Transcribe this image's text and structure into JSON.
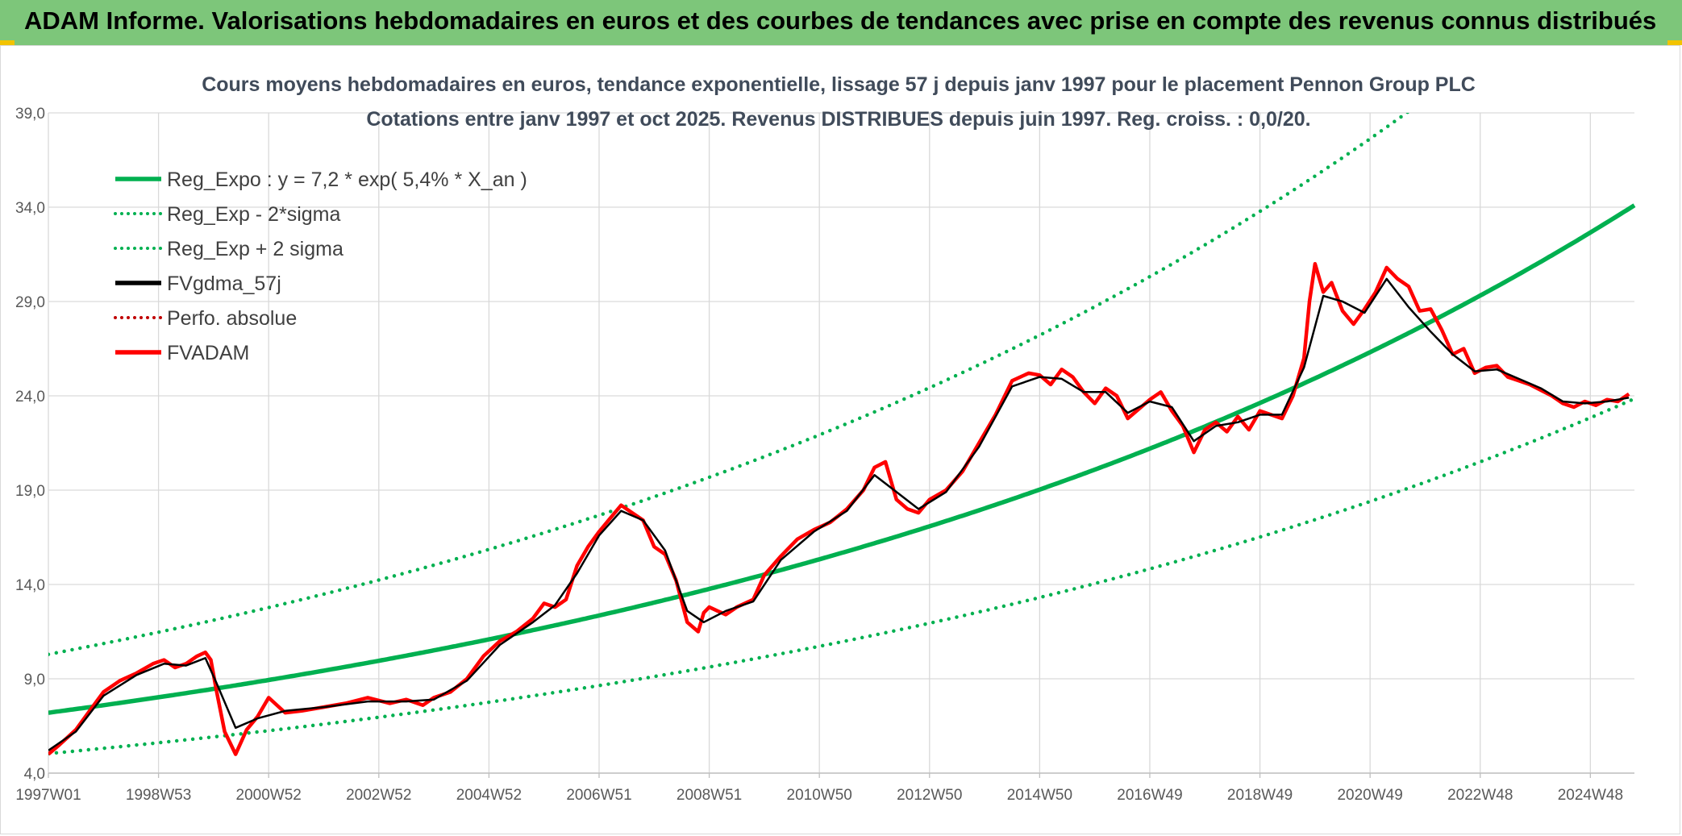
{
  "header": {
    "title": "ADAM Informe. Valorisations hebdomadaires en euros et des courbes de tendances avec prise en compte des revenus connus distribués"
  },
  "colors": {
    "banner": "#7dc67a",
    "regression": "#00b050",
    "fvadam": "#ff0000",
    "fvgdma": "#000000",
    "grid": "#d9d9d9"
  },
  "chart_data": {
    "type": "line",
    "title": "Cours moyens hebdomadaires en euros, tendance exponentielle, lissage 57 j depuis janv 1997 pour le placement Pennon Group PLC",
    "subtitle": "Cotations entre janv 1997 et oct 2025. Revenus DISTRIBUES depuis juin 1997. Reg. croiss. : 0,0/20.",
    "xlabel": "",
    "ylabel": "",
    "xlim": [
      1997.0,
      2025.8
    ],
    "ylim": [
      4.0,
      39.0
    ],
    "y_ticks": [
      "4,0",
      "9,0",
      "14,0",
      "19,0",
      "24,0",
      "29,0",
      "34,0",
      "39,0"
    ],
    "y_tick_values": [
      4,
      9,
      14,
      19,
      24,
      29,
      34,
      39
    ],
    "x_ticks": [
      "1997W01",
      "1998W53",
      "2000W52",
      "2002W52",
      "2004W52",
      "2006W51",
      "2008W51",
      "2010W50",
      "2012W50",
      "2014W50",
      "2016W49",
      "2018W49",
      "2020W49",
      "2022W48",
      "2024W48"
    ],
    "x_tick_values": [
      1997.0,
      1999.0,
      2001.0,
      2003.0,
      2005.0,
      2007.0,
      2009.0,
      2011.0,
      2013.0,
      2015.0,
      2017.0,
      2019.0,
      2021.0,
      2023.0,
      2025.0
    ],
    "regression": {
      "a": 7.2,
      "rate": 0.054,
      "sigma_factor": 1.43
    },
    "legend": [
      {
        "name": "Reg_Expo : y = 7,2 * exp( 5,4% *  X_an )",
        "color": "#00b050",
        "style": "solid"
      },
      {
        "name": "Reg_Exp - 2*sigma",
        "color": "#00b050",
        "style": "dotted"
      },
      {
        "name": "Reg_Exp + 2 sigma",
        "color": "#00b050",
        "style": "dotted"
      },
      {
        "name": "FVgdma_57j",
        "color": "#000000",
        "style": "solid"
      },
      {
        "name": "Perfo. absolue",
        "color": "#c00000",
        "style": "dotted"
      },
      {
        "name": "FVADAM",
        "color": "#ff0000",
        "style": "solid"
      }
    ],
    "series": [
      {
        "name": "FVADAM",
        "x": [
          1997.0,
          1997.2,
          1997.5,
          1997.8,
          1998.0,
          1998.3,
          1998.6,
          1998.9,
          1999.1,
          1999.3,
          1999.5,
          1999.7,
          1999.85,
          1999.95,
          2000.05,
          2000.2,
          2000.4,
          2000.6,
          2000.8,
          2001.0,
          2001.3,
          2001.6,
          2002.0,
          2002.4,
          2002.8,
          2003.2,
          2003.5,
          2003.8,
          2004.0,
          2004.3,
          2004.6,
          2004.9,
          2005.2,
          2005.5,
          2005.8,
          2006.0,
          2006.2,
          2006.4,
          2006.6,
          2006.8,
          2007.0,
          2007.2,
          2007.4,
          2007.6,
          2007.8,
          2008.0,
          2008.2,
          2008.4,
          2008.6,
          2008.8,
          2008.9,
          2009.0,
          2009.15,
          2009.3,
          2009.5,
          2009.8,
          2010.0,
          2010.3,
          2010.6,
          2010.9,
          2011.2,
          2011.5,
          2011.8,
          2012.0,
          2012.2,
          2012.4,
          2012.6,
          2012.8,
          2013.0,
          2013.3,
          2013.6,
          2013.9,
          2014.2,
          2014.5,
          2014.8,
          2015.0,
          2015.2,
          2015.4,
          2015.6,
          2015.8,
          2016.0,
          2016.2,
          2016.4,
          2016.6,
          2016.8,
          2017.0,
          2017.2,
          2017.4,
          2017.6,
          2017.8,
          2018.0,
          2018.2,
          2018.4,
          2018.6,
          2018.8,
          2019.0,
          2019.2,
          2019.4,
          2019.6,
          2019.8,
          2019.9,
          2020.0,
          2020.15,
          2020.3,
          2020.5,
          2020.7,
          2020.9,
          2021.1,
          2021.3,
          2021.5,
          2021.7,
          2021.9,
          2022.1,
          2022.3,
          2022.5,
          2022.7,
          2022.9,
          2023.1,
          2023.3,
          2023.5,
          2023.7,
          2023.9,
          2024.1,
          2024.3,
          2024.5,
          2024.7,
          2024.9,
          2025.1,
          2025.3,
          2025.5,
          2025.7
        ],
        "values": [
          5.0,
          5.5,
          6.3,
          7.5,
          8.3,
          8.9,
          9.3,
          9.8,
          10.0,
          9.6,
          9.8,
          10.2,
          10.4,
          10.0,
          8.4,
          6.2,
          5.0,
          6.3,
          7.0,
          8.0,
          7.2,
          7.3,
          7.5,
          7.7,
          8.0,
          7.7,
          7.9,
          7.6,
          8.0,
          8.3,
          9.0,
          10.2,
          11.0,
          11.5,
          12.2,
          13.0,
          12.8,
          13.2,
          15.0,
          16.0,
          16.8,
          17.5,
          18.2,
          17.8,
          17.4,
          16.0,
          15.6,
          14.2,
          12.0,
          11.5,
          12.5,
          12.8,
          12.6,
          12.4,
          12.8,
          13.2,
          14.5,
          15.5,
          16.4,
          16.9,
          17.3,
          18.0,
          19.0,
          20.2,
          20.5,
          18.5,
          18.0,
          17.8,
          18.5,
          19.0,
          20.0,
          21.5,
          23.0,
          24.8,
          25.2,
          25.1,
          24.6,
          25.4,
          25.0,
          24.2,
          23.6,
          24.4,
          24.0,
          22.8,
          23.3,
          23.8,
          24.2,
          23.2,
          22.4,
          21.0,
          22.2,
          22.6,
          22.1,
          22.9,
          22.2,
          23.2,
          23.0,
          22.8,
          24.0,
          26.0,
          29.0,
          31.0,
          29.5,
          30.0,
          28.5,
          27.8,
          28.6,
          29.5,
          30.8,
          30.2,
          29.8,
          28.5,
          28.6,
          27.5,
          26.2,
          26.5,
          25.2,
          25.5,
          25.6,
          25.0,
          24.8,
          24.6,
          24.3,
          24.0,
          23.6,
          23.4,
          23.7,
          23.5,
          23.8,
          23.7,
          24.1
        ]
      },
      {
        "name": "FVgdma_57j",
        "x": [
          1997.0,
          1997.5,
          1998.0,
          1998.6,
          1999.1,
          1999.5,
          1999.85,
          2000.05,
          2000.4,
          2000.8,
          2001.3,
          2002.0,
          2002.8,
          2003.5,
          2004.0,
          2004.6,
          2005.2,
          2005.8,
          2006.2,
          2006.6,
          2007.0,
          2007.4,
          2007.8,
          2008.2,
          2008.6,
          2008.9,
          2009.3,
          2009.8,
          2010.3,
          2010.9,
          2011.5,
          2012.0,
          2012.4,
          2012.8,
          2013.3,
          2013.9,
          2014.5,
          2015.0,
          2015.4,
          2015.8,
          2016.2,
          2016.6,
          2017.0,
          2017.4,
          2017.8,
          2018.2,
          2018.6,
          2019.0,
          2019.4,
          2019.8,
          2020.15,
          2020.5,
          2020.9,
          2021.3,
          2021.7,
          2022.1,
          2022.5,
          2022.9,
          2023.3,
          2023.7,
          2024.1,
          2024.5,
          2024.9,
          2025.3,
          2025.7
        ],
        "values": [
          5.2,
          6.2,
          8.1,
          9.2,
          9.8,
          9.7,
          10.1,
          8.8,
          6.4,
          6.9,
          7.3,
          7.5,
          7.8,
          7.8,
          7.9,
          8.9,
          10.8,
          12.0,
          12.9,
          14.6,
          16.6,
          17.9,
          17.4,
          15.8,
          12.6,
          12.0,
          12.6,
          13.1,
          15.3,
          16.8,
          17.9,
          19.8,
          18.9,
          18.0,
          18.9,
          21.3,
          24.5,
          25.0,
          24.9,
          24.2,
          24.2,
          23.1,
          23.7,
          23.4,
          21.6,
          22.4,
          22.6,
          23.0,
          23.0,
          25.5,
          29.3,
          29.0,
          28.4,
          30.2,
          28.7,
          27.4,
          26.2,
          25.3,
          25.4,
          24.9,
          24.4,
          23.7,
          23.6,
          23.7,
          23.9
        ]
      }
    ]
  }
}
